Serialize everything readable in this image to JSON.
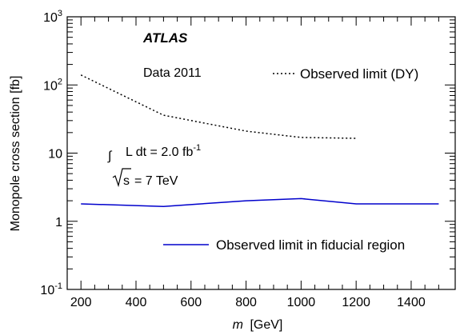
{
  "chart_data": {
    "type": "line",
    "title": "",
    "xlabel_var": "m",
    "xlabel_unit": "[GeV]",
    "ylabel": "Monopole cross section [fb]",
    "xlim": [
      150,
      1560
    ],
    "ylim": [
      0.1,
      1000
    ],
    "yscale": "log",
    "grid": false,
    "xticks": [
      200,
      400,
      600,
      800,
      1000,
      1200,
      1400
    ],
    "yticks": [
      {
        "value": 0.1,
        "base": "10",
        "exp": "-1"
      },
      {
        "value": 1,
        "label": "1"
      },
      {
        "value": 10,
        "label": "10"
      },
      {
        "value": 100,
        "base": "10",
        "exp": "2"
      },
      {
        "value": 1000,
        "base": "10",
        "exp": "3"
      }
    ],
    "annotations": {
      "experiment": "ATLAS",
      "dataset": "Data 2011",
      "luminosity": "L dt = 2.0 fb",
      "luminosity_unit_exp": "-1",
      "energy_sqrt": "s",
      "energy_value": "= 7 TeV"
    },
    "series": [
      {
        "name": "Observed limit (DY)",
        "style": "dotted",
        "color": "#000000",
        "x": [
          200,
          500,
          800,
          1000,
          1200
        ],
        "y": [
          140,
          36,
          21,
          17,
          16.5
        ]
      },
      {
        "name": "Observed limit in fiducial region",
        "style": "solid",
        "color": "#0000cc",
        "x": [
          200,
          500,
          800,
          1000,
          1200,
          1500
        ],
        "y": [
          1.8,
          1.65,
          2.0,
          2.15,
          1.8,
          1.8
        ]
      }
    ],
    "legend_placement": [
      "top-right",
      "bottom-right"
    ]
  }
}
